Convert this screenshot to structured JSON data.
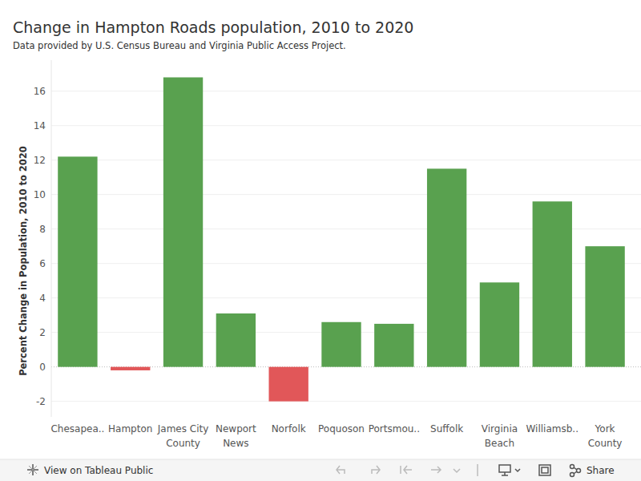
{
  "chart_data": {
    "type": "bar",
    "title": "Change in Hampton Roads population, 2010 to 2020",
    "subtitle": "Data provided by U.S. Census Bureau and Virginia Public Access Project.",
    "y_label": "Percent Change in Population, 2010 to 2020",
    "categories": [
      "Chesapea..",
      "Hampton",
      "James City County",
      "Newport News",
      "Norfolk",
      "Poquoson",
      "Portsmou..",
      "Suffolk",
      "Virginia Beach",
      "Williamsb..",
      "York County"
    ],
    "values": [
      12.2,
      -0.2,
      16.8,
      3.1,
      -2.0,
      2.6,
      2.5,
      11.5,
      4.9,
      9.6,
      7.0
    ],
    "colors": [
      "#59a14f",
      "#e15759",
      "#59a14f",
      "#59a14f",
      "#e15759",
      "#59a14f",
      "#59a14f",
      "#59a14f",
      "#59a14f",
      "#59a14f",
      "#59a14f"
    ],
    "ylim": [
      -2.9,
      17.8
    ],
    "yticks": [
      -2,
      0,
      2,
      4,
      6,
      8,
      10,
      12,
      14,
      16
    ],
    "grid": true,
    "annotations": [
      "View on Tableau Public",
      "Share"
    ]
  }
}
